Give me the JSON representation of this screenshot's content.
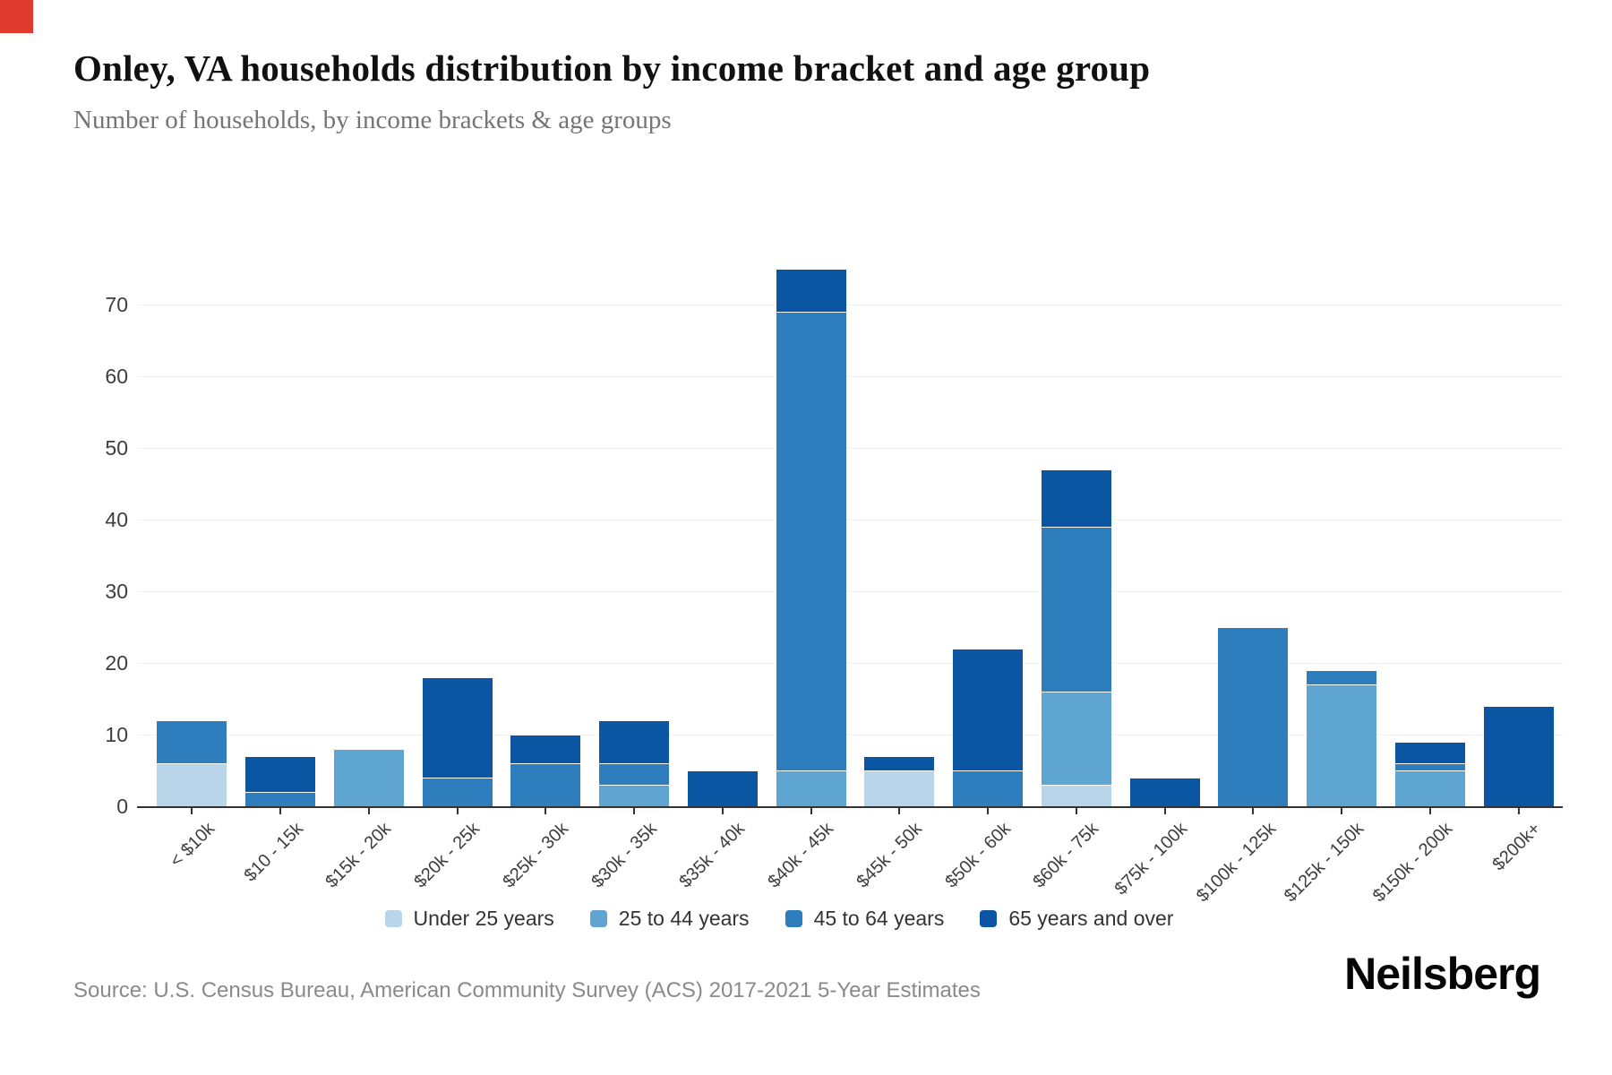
{
  "accent": {
    "corner_red": "#e0392e"
  },
  "header": {
    "title": "Onley, VA households distribution by income bracket and age group",
    "subtitle": "Number of households, by income brackets & age groups"
  },
  "chart_data": {
    "type": "bar",
    "stacked": true,
    "title": "Onley, VA households distribution by income bracket and age group",
    "subtitle": "Number of households, by income brackets & age groups",
    "xlabel": "",
    "ylabel": "",
    "ylim": [
      0,
      75
    ],
    "yticks": [
      0,
      10,
      20,
      30,
      40,
      50,
      60,
      70
    ],
    "grid": true,
    "legend_position": "bottom",
    "grid_color": "#f2f2f2",
    "axis_color": "#333333",
    "categories": [
      "< $10k",
      "$10 - 15k",
      "$15k - 20k",
      "$20k - 25k",
      "$25k - 30k",
      "$30k - 35k",
      "$35k - 40k",
      "$40k - 45k",
      "$45k - 50k",
      "$50k - 60k",
      "$60k - 75k",
      "$75k - 100k",
      "$100k - 125k",
      "$125k - 150k",
      "$150k - 200k",
      "$200k+"
    ],
    "series": [
      {
        "name": "Under 25 years",
        "color": "#b9d5ea",
        "values": [
          6,
          0,
          0,
          0,
          0,
          0,
          0,
          0,
          5,
          0,
          3,
          0,
          0,
          0,
          0,
          0
        ]
      },
      {
        "name": "25 to 44 years",
        "color": "#5ea5d2",
        "values": [
          0,
          0,
          8,
          0,
          0,
          3,
          0,
          5,
          0,
          0,
          13,
          0,
          0,
          17,
          5,
          0
        ]
      },
      {
        "name": "45 to 64 years",
        "color": "#2e7dbc",
        "values": [
          6,
          2,
          0,
          4,
          6,
          3,
          0,
          64,
          0,
          5,
          23,
          0,
          25,
          2,
          1,
          0
        ]
      },
      {
        "name": "65 years and over",
        "color": "#0b56a2",
        "values": [
          0,
          5,
          0,
          14,
          4,
          6,
          5,
          6,
          2,
          17,
          8,
          4,
          0,
          0,
          3,
          14
        ]
      }
    ],
    "totals": [
      12,
      7,
      8,
      18,
      10,
      12,
      5,
      75,
      7,
      22,
      47,
      4,
      25,
      19,
      9,
      14
    ]
  },
  "footer": {
    "source": "Source: U.S. Census Bureau, American Community Survey (ACS) 2017-2021 5-Year Estimates",
    "brand": "Neilsberg"
  }
}
